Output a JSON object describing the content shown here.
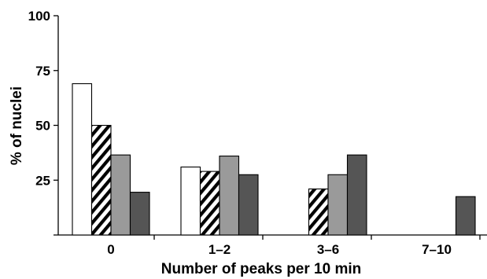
{
  "chart_data": {
    "type": "bar",
    "title": "",
    "xlabel": "Number of peaks per 10 min",
    "ylabel": "% of nuclei",
    "categories": [
      "0",
      "1–2",
      "3–6",
      "7–10"
    ],
    "yticks": [
      25,
      50,
      75,
      100
    ],
    "ylim": [
      0,
      100
    ],
    "grid": false,
    "series": [
      {
        "values": [
          69,
          31,
          0,
          0
        ],
        "color": "#ffffff",
        "pattern": "solid"
      },
      {
        "values": [
          50,
          29,
          21,
          0
        ],
        "color": "#ffffff",
        "pattern": "diagonal-hatch"
      },
      {
        "values": [
          36.5,
          36,
          27.5,
          0
        ],
        "color": "#9a9a9a",
        "pattern": "solid"
      },
      {
        "values": [
          19.5,
          27.5,
          36.5,
          17.5
        ],
        "color": "#555555",
        "pattern": "solid"
      }
    ]
  }
}
